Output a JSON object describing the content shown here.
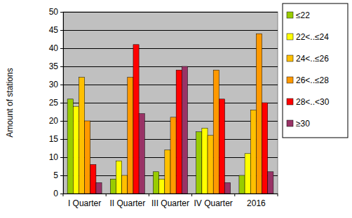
{
  "chart_data": {
    "type": "bar",
    "y_label": "Amount of stations",
    "categories": [
      "I Quarter",
      "II Quarter",
      "III Quarter",
      "IV Quarter",
      "2016"
    ],
    "series": [
      {
        "name": "≤22",
        "color": "#99cc00",
        "values": [
          26,
          4,
          6,
          17,
          5
        ]
      },
      {
        "name": "22<..≤24",
        "color": "#ffff00",
        "values": [
          24,
          9,
          4,
          18,
          11
        ]
      },
      {
        "name": "24<..≤26",
        "color": "#ffc000",
        "values": [
          32,
          5,
          12,
          16,
          23
        ]
      },
      {
        "name": "26<..≤28",
        "color": "#ff9900",
        "values": [
          20,
          32,
          21,
          34,
          44
        ]
      },
      {
        "name": "28<..<30",
        "color": "#ff0000",
        "values": [
          8,
          41,
          34,
          26,
          25
        ]
      },
      {
        "name": "≥30",
        "color": "#993366",
        "values": [
          3,
          22,
          35,
          3,
          6
        ]
      }
    ],
    "ylim": [
      0,
      50
    ],
    "yticks": [
      0,
      5,
      10,
      15,
      20,
      25,
      30,
      35,
      40,
      45,
      50
    ],
    "grid": true,
    "legend": "right"
  }
}
